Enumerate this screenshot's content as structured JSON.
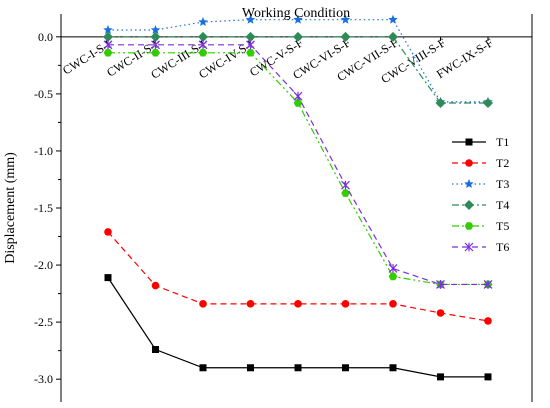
{
  "chart_data": {
    "type": "line",
    "xlabel": "Working Condition",
    "ylabel": "Displacement (mm)",
    "categories": [
      "CWC-I-S-F",
      "CWC-II-S-F",
      "CWC-III-S-F",
      "CWC-IV-S-F",
      "CWC-V-S-F",
      "CWC-VI-S-F",
      "CWC-VII-S-F",
      "CWC-VIII-S-F",
      "FWC-IX-S-F"
    ],
    "ylim": [
      -3.2,
      0.2
    ],
    "yticks": [
      -3.0,
      -2.5,
      -2.0,
      -1.5,
      -1.0,
      -0.5,
      0.0
    ],
    "ytick_labels": [
      "-3.0",
      "-2.5",
      "-2.0",
      "-1.5",
      "-1.0",
      "-0.5",
      "0.0"
    ],
    "x_axis_position": "top",
    "grid": false,
    "legend_position": "right",
    "series": [
      {
        "name": "T1",
        "color": "#000000",
        "dash": "solid",
        "marker": "square",
        "values": [
          -2.11,
          -2.74,
          -2.9,
          -2.9,
          -2.9,
          -2.9,
          -2.9,
          -2.98,
          -2.98
        ]
      },
      {
        "name": "T2",
        "color": "#ff0000",
        "dash": "dashed",
        "marker": "circle",
        "values": [
          -1.71,
          -2.18,
          -2.34,
          -2.34,
          -2.34,
          -2.34,
          -2.34,
          -2.42,
          -2.49
        ]
      },
      {
        "name": "T3",
        "color": "#1a6fdf",
        "dash": "dotted",
        "marker": "star",
        "values": [
          0.06,
          0.06,
          0.13,
          0.15,
          0.15,
          0.15,
          0.15,
          -0.57,
          -0.57
        ]
      },
      {
        "name": "T4",
        "color": "#2e8b57",
        "dash": "dashdot",
        "marker": "diamond",
        "values": [
          0.0,
          0.0,
          0.0,
          0.0,
          0.0,
          0.0,
          0.0,
          -0.58,
          -0.58
        ]
      },
      {
        "name": "T5",
        "color": "#33cc00",
        "dash": "dashdotdot",
        "marker": "hexagon",
        "values": [
          -0.14,
          -0.14,
          -0.14,
          -0.14,
          -0.58,
          -1.37,
          -2.1,
          -2.17,
          -2.17
        ]
      },
      {
        "name": "T6",
        "color": "#7b2fdc",
        "dash": "dashed",
        "marker": "asterisk",
        "values": [
          -0.07,
          -0.07,
          -0.07,
          -0.07,
          -0.52,
          -1.3,
          -2.03,
          -2.17,
          -2.17
        ]
      }
    ]
  }
}
